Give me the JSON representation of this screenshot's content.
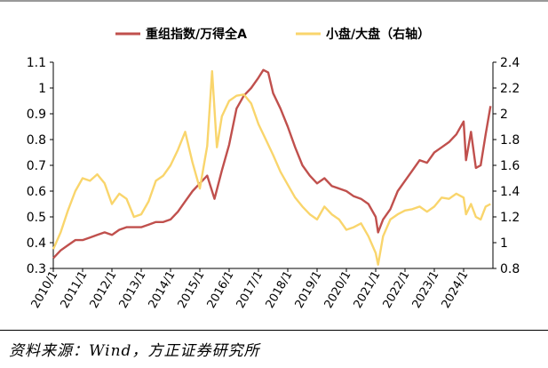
{
  "source_note": "资料来源：Wind，方正证券研究所",
  "chart_data": {
    "type": "line",
    "x_ticks": [
      "2010/1",
      "2011/1",
      "2012/1",
      "2013/1",
      "2014/1",
      "2015/1",
      "2016/1",
      "2017/1",
      "2018/1",
      "2019/1",
      "2020/1",
      "2021/1",
      "2022/1",
      "2023/1",
      "2024/1"
    ],
    "y_left": {
      "ticks": [
        "0.3",
        "0.4",
        "0.5",
        "0.6",
        "0.7",
        "0.8",
        "0.9",
        "1",
        "1.1"
      ],
      "ylim": [
        0.3,
        1.1
      ]
    },
    "y_right": {
      "ticks": [
        "0.8",
        "1",
        "1.2",
        "1.4",
        "1.6",
        "1.8",
        "2",
        "2.2",
        "2.4"
      ],
      "ylim": [
        0.8,
        2.4
      ]
    },
    "grid": false,
    "legend_position": "top-center",
    "series": [
      {
        "name": "重组指数/万得全A",
        "axis": "left",
        "color": "#c0504d",
        "points": [
          [
            "2010-01",
            0.34
          ],
          [
            "2010-04",
            0.37
          ],
          [
            "2010-07",
            0.39
          ],
          [
            "2010-10",
            0.41
          ],
          [
            "2011-01",
            0.41
          ],
          [
            "2011-04",
            0.42
          ],
          [
            "2011-07",
            0.43
          ],
          [
            "2011-10",
            0.44
          ],
          [
            "2012-01",
            0.43
          ],
          [
            "2012-04",
            0.45
          ],
          [
            "2012-07",
            0.46
          ],
          [
            "2012-10",
            0.46
          ],
          [
            "2013-01",
            0.46
          ],
          [
            "2013-04",
            0.47
          ],
          [
            "2013-07",
            0.48
          ],
          [
            "2013-10",
            0.48
          ],
          [
            "2014-01",
            0.49
          ],
          [
            "2014-04",
            0.52
          ],
          [
            "2014-07",
            0.56
          ],
          [
            "2014-10",
            0.6
          ],
          [
            "2015-01",
            0.63
          ],
          [
            "2015-04",
            0.66
          ],
          [
            "2015-07",
            0.57
          ],
          [
            "2015-10",
            0.68
          ],
          [
            "2016-01",
            0.78
          ],
          [
            "2016-04",
            0.92
          ],
          [
            "2016-07",
            0.97
          ],
          [
            "2016-10",
            1.0
          ],
          [
            "2017-01",
            1.04
          ],
          [
            "2017-03",
            1.07
          ],
          [
            "2017-05",
            1.06
          ],
          [
            "2017-07",
            0.98
          ],
          [
            "2017-10",
            0.92
          ],
          [
            "2018-01",
            0.85
          ],
          [
            "2018-04",
            0.77
          ],
          [
            "2018-07",
            0.7
          ],
          [
            "2018-10",
            0.66
          ],
          [
            "2019-01",
            0.63
          ],
          [
            "2019-04",
            0.65
          ],
          [
            "2019-07",
            0.62
          ],
          [
            "2019-10",
            0.61
          ],
          [
            "2020-01",
            0.6
          ],
          [
            "2020-04",
            0.58
          ],
          [
            "2020-07",
            0.57
          ],
          [
            "2020-10",
            0.55
          ],
          [
            "2021-01",
            0.5
          ],
          [
            "2021-02",
            0.44
          ],
          [
            "2021-04",
            0.49
          ],
          [
            "2021-07",
            0.53
          ],
          [
            "2021-10",
            0.6
          ],
          [
            "2022-01",
            0.64
          ],
          [
            "2022-04",
            0.68
          ],
          [
            "2022-07",
            0.72
          ],
          [
            "2022-10",
            0.71
          ],
          [
            "2023-01",
            0.75
          ],
          [
            "2023-04",
            0.77
          ],
          [
            "2023-07",
            0.79
          ],
          [
            "2023-10",
            0.82
          ],
          [
            "2024-01",
            0.87
          ],
          [
            "2024-02",
            0.72
          ],
          [
            "2024-04",
            0.83
          ],
          [
            "2024-06",
            0.69
          ],
          [
            "2024-08",
            0.7
          ],
          [
            "2024-10",
            0.82
          ],
          [
            "2024-12",
            0.93
          ]
        ]
      },
      {
        "name": "小盘/大盘（右轴）",
        "axis": "right",
        "color": "#f9d56c",
        "points": [
          [
            "2010-01",
            0.95
          ],
          [
            "2010-04",
            1.08
          ],
          [
            "2010-07",
            1.25
          ],
          [
            "2010-10",
            1.4
          ],
          [
            "2011-01",
            1.5
          ],
          [
            "2011-04",
            1.48
          ],
          [
            "2011-07",
            1.53
          ],
          [
            "2011-10",
            1.46
          ],
          [
            "2012-01",
            1.3
          ],
          [
            "2012-04",
            1.38
          ],
          [
            "2012-07",
            1.34
          ],
          [
            "2012-10",
            1.2
          ],
          [
            "2013-01",
            1.22
          ],
          [
            "2013-04",
            1.32
          ],
          [
            "2013-07",
            1.48
          ],
          [
            "2013-10",
            1.52
          ],
          [
            "2014-01",
            1.6
          ],
          [
            "2014-04",
            1.72
          ],
          [
            "2014-07",
            1.86
          ],
          [
            "2014-10",
            1.62
          ],
          [
            "2015-01",
            1.42
          ],
          [
            "2015-04",
            1.75
          ],
          [
            "2015-06",
            2.33
          ],
          [
            "2015-08",
            1.74
          ],
          [
            "2015-10",
            1.98
          ],
          [
            "2016-01",
            2.1
          ],
          [
            "2016-04",
            2.14
          ],
          [
            "2016-07",
            2.15
          ],
          [
            "2016-10",
            2.08
          ],
          [
            "2017-01",
            1.92
          ],
          [
            "2017-04",
            1.8
          ],
          [
            "2017-07",
            1.68
          ],
          [
            "2017-10",
            1.55
          ],
          [
            "2018-01",
            1.45
          ],
          [
            "2018-04",
            1.35
          ],
          [
            "2018-07",
            1.28
          ],
          [
            "2018-10",
            1.22
          ],
          [
            "2019-01",
            1.18
          ],
          [
            "2019-04",
            1.28
          ],
          [
            "2019-07",
            1.22
          ],
          [
            "2019-10",
            1.18
          ],
          [
            "2020-01",
            1.1
          ],
          [
            "2020-04",
            1.12
          ],
          [
            "2020-07",
            1.15
          ],
          [
            "2020-10",
            1.05
          ],
          [
            "2021-01",
            0.92
          ],
          [
            "2021-02",
            0.83
          ],
          [
            "2021-04",
            1.05
          ],
          [
            "2021-07",
            1.18
          ],
          [
            "2021-10",
            1.22
          ],
          [
            "2022-01",
            1.25
          ],
          [
            "2022-04",
            1.26
          ],
          [
            "2022-07",
            1.28
          ],
          [
            "2022-10",
            1.24
          ],
          [
            "2023-01",
            1.28
          ],
          [
            "2023-04",
            1.35
          ],
          [
            "2023-07",
            1.34
          ],
          [
            "2023-10",
            1.38
          ],
          [
            "2024-01",
            1.35
          ],
          [
            "2024-02",
            1.22
          ],
          [
            "2024-04",
            1.3
          ],
          [
            "2024-06",
            1.2
          ],
          [
            "2024-08",
            1.18
          ],
          [
            "2024-10",
            1.28
          ],
          [
            "2024-12",
            1.3
          ]
        ]
      }
    ]
  }
}
